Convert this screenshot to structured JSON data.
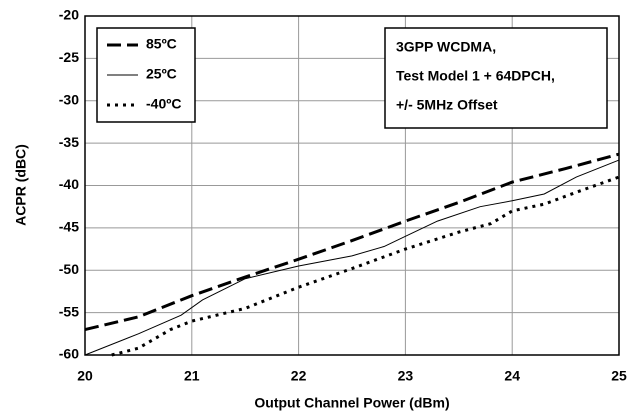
{
  "chart_data": {
    "type": "line",
    "x_label": "Output Channel Power (dBm)",
    "y_label": "ACPR (dBC)",
    "xlim": [
      20,
      25
    ],
    "xticks": [
      20,
      21,
      22,
      23,
      24,
      25
    ],
    "ylim": [
      -60,
      -20
    ],
    "yticks": [
      -20,
      -25,
      -30,
      -35,
      -40,
      -45,
      -50,
      -55,
      -60
    ],
    "grid": true,
    "annotation": [
      "3GPP WCDMA,",
      "Test Model 1 + 64DPCH,",
      "+/- 5MHz Offset"
    ],
    "series": [
      {
        "name": "85ºC",
        "color": "#000000",
        "dash": "14 6",
        "width": 3,
        "x": [
          20,
          20.5,
          21,
          21.5,
          22,
          22.5,
          23,
          23.5,
          24,
          24.5,
          25
        ],
        "values": [
          -57,
          -55.5,
          -53,
          -50.8,
          -48.7,
          -46.5,
          -44.2,
          -42,
          -39.6,
          -38,
          -36.3
        ]
      },
      {
        "name": "25ºC",
        "color": "#000000",
        "dash": "none",
        "width": 1,
        "x": [
          20,
          20.5,
          20.9,
          21.1,
          21.5,
          22,
          22.5,
          22.8,
          23,
          23.3,
          23.7,
          24,
          24.3,
          24.6,
          25
        ],
        "values": [
          -60,
          -57.5,
          -55.3,
          -53.5,
          -51,
          -49.5,
          -48.3,
          -47.2,
          -46,
          -44.2,
          -42.5,
          -41.8,
          -41,
          -39,
          -37
        ]
      },
      {
        "name": "-40ºC",
        "color": "#000000",
        "dash": "3 5",
        "width": 3,
        "x": [
          20.25,
          20.5,
          20.8,
          21,
          21.5,
          22,
          22.5,
          23,
          23.5,
          23.8,
          24,
          24.3,
          24.6,
          25
        ],
        "values": [
          -60,
          -59.2,
          -57,
          -56,
          -54.5,
          -52,
          -49.8,
          -47.5,
          -45.5,
          -44.5,
          -43,
          -42.2,
          -40.8,
          -39
        ]
      }
    ]
  }
}
